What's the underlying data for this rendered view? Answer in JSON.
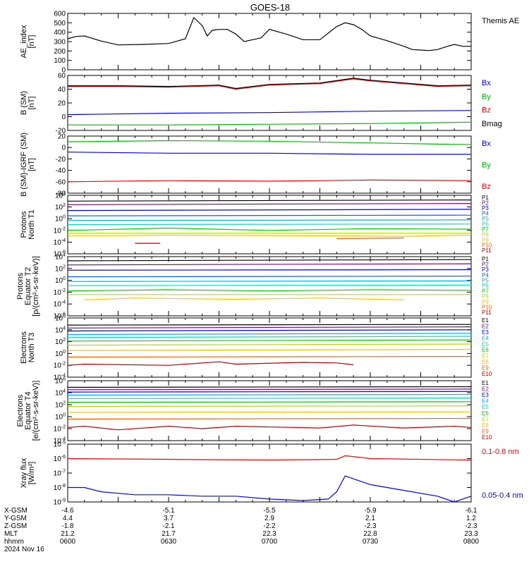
{
  "title": "GOES-18",
  "chart_data": [
    {
      "type": "line",
      "ylabel": [
        "AE_index",
        "[nT]"
      ],
      "ylim": [
        0,
        600
      ],
      "log": false,
      "yticks": [
        0,
        100,
        200,
        300,
        400,
        500,
        600
      ],
      "series": [
        {
          "name": "Themis AE",
          "color": "#000000",
          "x": [
            0,
            5,
            10,
            20,
            30,
            45,
            60,
            70,
            75,
            80,
            83,
            86,
            90,
            95,
            100,
            105,
            110,
            115,
            120,
            130,
            140,
            150,
            160,
            165,
            170,
            175,
            180,
            190,
            200,
            205,
            210,
            215,
            220,
            225,
            230,
            235,
            240
          ],
          "values": [
            330,
            355,
            360,
            305,
            265,
            270,
            280,
            330,
            555,
            470,
            360,
            420,
            430,
            430,
            380,
            300,
            320,
            340,
            430,
            380,
            320,
            320,
            460,
            500,
            480,
            430,
            360,
            310,
            250,
            215,
            210,
            205,
            215,
            245,
            270,
            250,
            250
          ]
        }
      ]
    },
    {
      "type": "line",
      "ylabel": [
        "B (SM)",
        "[nT]"
      ],
      "ylim": [
        -20,
        60
      ],
      "log": false,
      "yticks": [
        -20,
        0,
        20,
        40,
        60
      ],
      "series": [
        {
          "name": "Bx",
          "color": "#0000ff",
          "x": [
            0,
            60,
            120,
            180,
            240
          ],
          "values": [
            3,
            5,
            6,
            8,
            9
          ]
        },
        {
          "name": "By",
          "color": "#00c000",
          "x": [
            0,
            60,
            120,
            180,
            240
          ],
          "values": [
            -12,
            -12,
            -11,
            -10,
            -8
          ]
        },
        {
          "name": "Bz",
          "color": "#ff0000",
          "x": [
            0,
            30,
            60,
            90,
            100,
            120,
            150,
            170,
            180,
            200,
            220,
            240
          ],
          "values": [
            44,
            44,
            43,
            45,
            40,
            46,
            48,
            55,
            52,
            48,
            44,
            45
          ]
        },
        {
          "name": "Bmag",
          "color": "#000000",
          "x": [
            0,
            30,
            60,
            90,
            100,
            120,
            150,
            170,
            180,
            200,
            220,
            240
          ],
          "values": [
            45,
            45,
            44,
            46,
            41,
            47,
            49,
            56,
            53,
            49,
            45,
            46
          ]
        }
      ]
    },
    {
      "type": "line",
      "ylabel": [
        "B (SM)-IGRF (SM)",
        "[nT]"
      ],
      "ylim": [
        -80,
        20
      ],
      "log": false,
      "yticks": [
        -80,
        -60,
        -40,
        -20,
        0,
        20
      ],
      "series": [
        {
          "name": "Bx",
          "color": "#0000ff",
          "x": [
            0,
            60,
            120,
            180,
            240
          ],
          "values": [
            -8,
            -10,
            -10,
            -12,
            -12
          ]
        },
        {
          "name": "By",
          "color": "#00c000",
          "x": [
            0,
            60,
            120,
            180,
            240
          ],
          "values": [
            10,
            12,
            11,
            8,
            5
          ]
        },
        {
          "name": "Bz",
          "color": "#ff0000",
          "x": [
            0,
            60,
            120,
            180,
            240
          ],
          "values": [
            -60,
            -58,
            -59,
            -57,
            -58
          ]
        }
      ]
    },
    {
      "type": "line",
      "ylabel": [
        "Protons",
        "North T1"
      ],
      "ylim": [
        -6,
        4
      ],
      "log": true,
      "yticks": [
        -6,
        -4,
        -2,
        0,
        2,
        4
      ],
      "series": [
        {
          "name": "P1",
          "color": "#000000",
          "x": [
            0,
            240
          ],
          "values": [
            3.0,
            3.2
          ]
        },
        {
          "name": "P2",
          "color": "#800080",
          "x": [
            0,
            240
          ],
          "values": [
            2.4,
            2.6
          ]
        },
        {
          "name": "P3",
          "color": "#0000ff",
          "x": [
            0,
            240
          ],
          "values": [
            1.4,
            1.6
          ]
        },
        {
          "name": "P4",
          "color": "#0060ff",
          "x": [
            0,
            240
          ],
          "values": [
            0.5,
            0.6
          ]
        },
        {
          "name": "P5",
          "color": "#00b0ff",
          "x": [
            0,
            240
          ],
          "values": [
            -0.3,
            -0.2
          ]
        },
        {
          "name": "P6",
          "color": "#00e0c0",
          "x": [
            0,
            240
          ],
          "values": [
            -1.0,
            -0.9
          ]
        },
        {
          "name": "P7",
          "color": "#00d000",
          "x": [
            0,
            60,
            120,
            180,
            240
          ],
          "values": [
            -2.0,
            -1.6,
            -2.0,
            -1.7,
            -1.8
          ]
        },
        {
          "name": "P8",
          "color": "#b0e000",
          "x": [
            0,
            240
          ],
          "values": [
            -2.5,
            -2.5
          ]
        },
        {
          "name": "P9",
          "color": "#ffc000",
          "x": [
            0,
            30,
            60,
            200,
            240
          ],
          "values": [
            -2.9,
            -2.9,
            -2.8,
            -3.0,
            -2.8
          ]
        },
        {
          "name": "P10",
          "color": "#ff6000",
          "x": [
            160,
            200
          ],
          "values": [
            -3.4,
            -3.3
          ]
        },
        {
          "name": "P11",
          "color": "#c00000",
          "x": [
            40,
            55
          ],
          "values": [
            -4.2,
            -4.2
          ]
        }
      ]
    },
    {
      "type": "line",
      "ylabel": [
        "Protons",
        "Equator T2",
        "[p/(cm²-s-sr-keV)]"
      ],
      "ylim": [
        -6,
        4
      ],
      "log": true,
      "yticks": [
        -6,
        -4,
        -2,
        0,
        2,
        4
      ],
      "series": [
        {
          "name": "P1",
          "color": "#000000",
          "x": [
            0,
            240
          ],
          "values": [
            3.3,
            3.5
          ]
        },
        {
          "name": "P2",
          "color": "#800080",
          "x": [
            0,
            240
          ],
          "values": [
            2.6,
            2.8
          ]
        },
        {
          "name": "P3",
          "color": "#0000ff",
          "x": [
            0,
            240
          ],
          "values": [
            1.7,
            1.8
          ]
        },
        {
          "name": "P4",
          "color": "#0060ff",
          "x": [
            0,
            240
          ],
          "values": [
            0.6,
            0.7
          ]
        },
        {
          "name": "P5",
          "color": "#00b0ff",
          "x": [
            0,
            240
          ],
          "values": [
            -0.2,
            -0.1
          ]
        },
        {
          "name": "P6",
          "color": "#00e0c0",
          "x": [
            0,
            240
          ],
          "values": [
            -0.9,
            -0.8
          ]
        },
        {
          "name": "P7",
          "color": "#00d000",
          "x": [
            0,
            60,
            120,
            180,
            240
          ],
          "values": [
            -1.8,
            -1.6,
            -1.8,
            -1.6,
            -1.7
          ]
        },
        {
          "name": "P8",
          "color": "#b0e000",
          "x": [
            0,
            240
          ],
          "values": [
            -2.4,
            -2.4
          ]
        },
        {
          "name": "P9",
          "color": "#ffc000",
          "x": [
            10,
            40,
            100,
            150,
            200
          ],
          "values": [
            -3.3,
            -3.0,
            -3.2,
            -3.0,
            -3.3
          ]
        },
        {
          "name": "P10",
          "color": "#ff6000",
          "x": [],
          "values": []
        },
        {
          "name": "P11",
          "color": "#c00000",
          "x": [],
          "values": []
        }
      ]
    },
    {
      "type": "line",
      "ylabel": [
        "Electrons",
        "North T3"
      ],
      "ylim": [
        -4,
        6
      ],
      "log": true,
      "yticks": [
        -4,
        -2,
        0,
        2,
        4,
        6
      ],
      "series": [
        {
          "name": "E1",
          "color": "#000000",
          "x": [
            0,
            240
          ],
          "values": [
            4.8,
            4.9
          ]
        },
        {
          "name": "E2",
          "color": "#800080",
          "x": [
            0,
            240
          ],
          "values": [
            4.3,
            4.5
          ]
        },
        {
          "name": "E3",
          "color": "#0000ff",
          "x": [
            0,
            240
          ],
          "values": [
            3.8,
            4.0
          ]
        },
        {
          "name": "E4",
          "color": "#00b0ff",
          "x": [
            0,
            240
          ],
          "values": [
            3.2,
            3.4
          ]
        },
        {
          "name": "E5",
          "color": "#00e0c0",
          "x": [
            0,
            240
          ],
          "values": [
            2.7,
            2.9
          ]
        },
        {
          "name": "E6",
          "color": "#00d000",
          "x": [
            0,
            240
          ],
          "values": [
            2.1,
            2.3
          ]
        },
        {
          "name": "E7",
          "color": "#b0e000",
          "x": [
            0,
            240
          ],
          "values": [
            1.4,
            1.6
          ]
        },
        {
          "name": "E8",
          "color": "#ffc000",
          "x": [
            0,
            240
          ],
          "values": [
            0.5,
            0.7
          ]
        },
        {
          "name": "E9",
          "color": "#ff6000",
          "x": [
            0,
            240
          ],
          "values": [
            -0.6,
            -0.5
          ]
        },
        {
          "name": "E10",
          "color": "#c00000",
          "x": [
            0,
            10,
            60,
            90,
            100,
            140,
            160,
            170
          ],
          "values": [
            -2.0,
            -1.8,
            -2.0,
            -1.4,
            -1.8,
            -1.5,
            -1.6,
            -1.9
          ]
        }
      ]
    },
    {
      "type": "line",
      "ylabel": [
        "Electrons",
        "Equator T4",
        "[e/(cm²-s-sr-keV)]"
      ],
      "ylim": [
        -4,
        6
      ],
      "log": true,
      "yticks": [
        -4,
        -2,
        0,
        2,
        4,
        6
      ],
      "series": [
        {
          "name": "E1",
          "color": "#000000",
          "x": [
            0,
            240
          ],
          "values": [
            4.9,
            5.0
          ]
        },
        {
          "name": "E2",
          "color": "#800080",
          "x": [
            0,
            240
          ],
          "values": [
            4.5,
            4.6
          ]
        },
        {
          "name": "E3",
          "color": "#0000ff",
          "x": [
            0,
            240
          ],
          "values": [
            4.1,
            4.2
          ]
        },
        {
          "name": "E4",
          "color": "#00b0ff",
          "x": [
            0,
            240
          ],
          "values": [
            3.6,
            3.7
          ]
        },
        {
          "name": "E5",
          "color": "#00e0c0",
          "x": [
            0,
            240
          ],
          "values": [
            3.0,
            3.1
          ]
        },
        {
          "name": "E6",
          "color": "#00d000",
          "x": [
            0,
            240
          ],
          "values": [
            2.4,
            2.5
          ]
        },
        {
          "name": "E7",
          "color": "#b0e000",
          "x": [
            0,
            240
          ],
          "values": [
            1.7,
            1.8
          ]
        },
        {
          "name": "E8",
          "color": "#ffc000",
          "x": [
            0,
            240
          ],
          "values": [
            0.7,
            0.8
          ]
        },
        {
          "name": "E9",
          "color": "#ff6000",
          "x": [
            0,
            240
          ],
          "values": [
            -0.4,
            -0.3
          ]
        },
        {
          "name": "E10",
          "color": "#c00000",
          "x": [
            0,
            10,
            30,
            60,
            80,
            100,
            150,
            170,
            200,
            230,
            240
          ],
          "values": [
            -1.8,
            -1.6,
            -2.2,
            -1.6,
            -2.0,
            -1.6,
            -1.9,
            -1.4,
            -1.9,
            -1.6,
            -1.8
          ]
        }
      ]
    },
    {
      "type": "line",
      "ylabel": [
        "Xray flux",
        "[W/m²]"
      ],
      "ylim": [
        -9,
        -5
      ],
      "log": true,
      "yticks": [
        -9,
        -8,
        -7,
        -6,
        -5
      ],
      "series": [
        {
          "name": "0.1-0.8 nm",
          "color": "#ff0000",
          "x": [
            0,
            60,
            120,
            160,
            165,
            180,
            240
          ],
          "values": [
            -6.0,
            -6.05,
            -6.1,
            -6.05,
            -5.8,
            -6.0,
            -6.1
          ]
        },
        {
          "name": "0.05-0.4 nm",
          "color": "#0000ff",
          "x": [
            0,
            10,
            20,
            30,
            40,
            60,
            80,
            100,
            120,
            140,
            155,
            160,
            165,
            180,
            200,
            220,
            230,
            240
          ],
          "values": [
            -8.0,
            -8.0,
            -8.3,
            -8.4,
            -8.5,
            -8.5,
            -8.6,
            -8.6,
            -8.8,
            -8.9,
            -8.8,
            -8.3,
            -7.2,
            -7.8,
            -8.2,
            -8.6,
            -9.0,
            -8.6
          ]
        }
      ]
    }
  ],
  "ephemeris": {
    "labels": [
      "X-GSM",
      "Y-GSM",
      "Z-GSM",
      "MLT",
      "hhmm"
    ],
    "columns": [
      [
        "-4.6",
        "4.4",
        "-1.8",
        "21.2",
        "0600"
      ],
      [
        "-5.1",
        "3.7",
        "-2.1",
        "21.7",
        "0630"
      ],
      [
        "-5.5",
        "2.9",
        "-2.2",
        "22.3",
        "0700"
      ],
      [
        "-5.9",
        "2.1",
        "-2.3",
        "22.8",
        "0730"
      ],
      [
        "-6.1",
        "1.2",
        "-2.3",
        "23.3",
        "0800"
      ]
    ],
    "date": "2024 Nov 16"
  }
}
